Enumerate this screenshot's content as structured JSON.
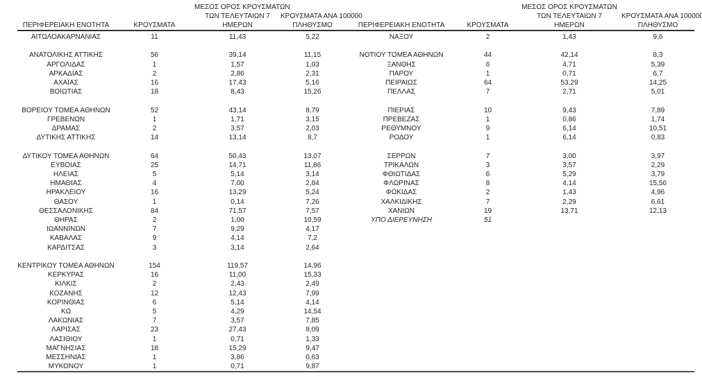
{
  "page": {
    "background": "#ffffff",
    "text_color": "#1f1f1f",
    "header_rule_color": "#2f2f2f",
    "bottom_rule_color": "#4d4d4d"
  },
  "table": {
    "headers": {
      "region": "ΠΕΡΙΦΕΡΕΙΑΚΗ ΕΝΟΤΗΤΑ",
      "cases": "ΚΡΟΥΣΜΑΤΑ",
      "avg7_l1": "ΜΕΣΟΣ ΟΡΟΣ ΚΡΟΥΣΜΑΤΩΝ",
      "avg7_l2": "ΤΩΝ ΤΕΛΕΥΤΑΙΩΝ 7",
      "avg7_l3": "ΗΜΕΡΩΝ",
      "per100k_l1": "ΚΡΟΥΣΜΑΤΑ ΑΝΑ 100000",
      "per100k_l2": "ΠΛΗΘΥΣΜΟ"
    },
    "left_rows": [
      {
        "region": "ΑΙΤΩΛΟΑΚΑΡΝΑΝΙΑΣ",
        "cases": "11",
        "avg7": "11,43",
        "per100k": "5,22"
      },
      null,
      {
        "region": "ΑΝΑΤΟΛΙΚΗΣ ΑΤΤΙΚΗΣ",
        "cases": "56",
        "avg7": "39,14",
        "per100k": "11,15"
      },
      {
        "region": "ΑΡΓΟΛΙΔΑΣ",
        "cases": "1",
        "avg7": "1,57",
        "per100k": "1,03"
      },
      {
        "region": "ΑΡΚΑΔΙΑΣ",
        "cases": "2",
        "avg7": "2,86",
        "per100k": "2,31"
      },
      {
        "region": "ΑΧΑΪΑΣ",
        "cases": "16",
        "avg7": "17,43",
        "per100k": "5,16"
      },
      {
        "region": "ΒΟΙΩΤΙΑΣ",
        "cases": "18",
        "avg7": "8,43",
        "per100k": "15,26"
      },
      null,
      {
        "region": "ΒΟΡΕΙΟΥ ΤΟΜΕΑ ΑΘΗΝΩΝ",
        "cases": "52",
        "avg7": "43,14",
        "per100k": "8,79"
      },
      {
        "region": "ΓΡΕΒΕΝΩΝ",
        "cases": "1",
        "avg7": "1,71",
        "per100k": "3,15"
      },
      {
        "region": "ΔΡΑΜΑΣ",
        "cases": "2",
        "avg7": "3,57",
        "per100k": "2,03"
      },
      {
        "region": "ΔΥΤΙΚΗΣ ΑΤΤΙΚΗΣ",
        "cases": "14",
        "avg7": "13,14",
        "per100k": "8,7"
      },
      null,
      {
        "region": "ΔΥΤΙΚΟΥ ΤΟΜΕΑ ΑΘΗΝΩΝ",
        "cases": "64",
        "avg7": "50,43",
        "per100k": "13,07"
      },
      {
        "region": "ΕΥΒΟΙΑΣ",
        "cases": "25",
        "avg7": "14,71",
        "per100k": "11,86"
      },
      {
        "region": "ΗΛΕΙΑΣ",
        "cases": "5",
        "avg7": "5,14",
        "per100k": "3,14"
      },
      {
        "region": "ΗΜΑΘΙΑΣ",
        "cases": "4",
        "avg7": "7,00",
        "per100k": "2,84"
      },
      {
        "region": "ΗΡΑΚΛΕΙΟΥ",
        "cases": "16",
        "avg7": "13,29",
        "per100k": "5,24"
      },
      {
        "region": "ΘΑΣΟΥ",
        "cases": "1",
        "avg7": "0,14",
        "per100k": "7,26"
      },
      {
        "region": "ΘΕΣΣΑΛΟΝΙΚΗΣ",
        "cases": "84",
        "avg7": "71,57",
        "per100k": "7,57"
      },
      {
        "region": "ΘΗΡΑΣ",
        "cases": "2",
        "avg7": "1,00",
        "per100k": "10,59"
      },
      {
        "region": "ΙΩΑΝΝΙΝΩΝ",
        "cases": "7",
        "avg7": "9,29",
        "per100k": "4,17"
      },
      {
        "region": "ΚΑΒΑΛΑΣ",
        "cases": "9",
        "avg7": "4,14",
        "per100k": "7,2"
      },
      {
        "region": "ΚΑΡΔΙΤΣΑΣ",
        "cases": "3",
        "avg7": "3,14",
        "per100k": "2,64"
      },
      null,
      {
        "region": "ΚΕΝΤΡΙΚΟΥ ΤΟΜΕΑ ΑΘΗΝΩΝ",
        "cases": "154",
        "avg7": "119,57",
        "per100k": "14,96"
      },
      {
        "region": "ΚΕΡΚΥΡΑΣ",
        "cases": "16",
        "avg7": "11,00",
        "per100k": "15,33"
      },
      {
        "region": "ΚΙΛΚΙΣ",
        "cases": "2",
        "avg7": "2,43",
        "per100k": "2,49"
      },
      {
        "region": "ΚΟΖΑΝΗΣ",
        "cases": "12",
        "avg7": "12,43",
        "per100k": "7,99"
      },
      {
        "region": "ΚΟΡΙΝΘΙΑΣ",
        "cases": "6",
        "avg7": "5,14",
        "per100k": "4,14"
      },
      {
        "region": "ΚΩ",
        "cases": "5",
        "avg7": "4,29",
        "per100k": "14,54"
      },
      {
        "region": "ΛΑΚΩΝΙΑΣ",
        "cases": "7",
        "avg7": "3,57",
        "per100k": "7,85"
      },
      {
        "region": "ΛΑΡΙΣΑΣ",
        "cases": "23",
        "avg7": "27,43",
        "per100k": "8,09"
      },
      {
        "region": "ΛΑΣΙΘΙΟΥ",
        "cases": "1",
        "avg7": "0,71",
        "per100k": "1,33"
      },
      {
        "region": "ΜΑΓΝΗΣΙΑΣ",
        "cases": "18",
        "avg7": "15,29",
        "per100k": "9,47"
      },
      {
        "region": "ΜΕΣΣΗΝΙΑΣ",
        "cases": "1",
        "avg7": "3,86",
        "per100k": "0,63"
      },
      {
        "region": "ΜΥΚΟΝΟΥ",
        "cases": "1",
        "avg7": "0,71",
        "per100k": "9,87"
      }
    ],
    "right_rows": [
      {
        "region": "ΝΑΞΟΥ",
        "cases": "2",
        "avg7": "1,43",
        "per100k": "9,6"
      },
      null,
      {
        "region": "ΝΟΤΙΟΥ ΤΟΜΕΑ ΑΘΗΝΩΝ",
        "cases": "44",
        "avg7": "42,14",
        "per100k": "8,3"
      },
      {
        "region": "ΞΑΝΘΗΣ",
        "cases": "6",
        "avg7": "4,71",
        "per100k": "5,39"
      },
      {
        "region": "ΠΑΡΟΥ",
        "cases": "1",
        "avg7": "0,71",
        "per100k": "6,7"
      },
      {
        "region": "ΠΕΙΡΑΙΩΣ",
        "cases": "64",
        "avg7": "53,29",
        "per100k": "14,25"
      },
      {
        "region": "ΠΕΛΛΑΣ",
        "cases": "7",
        "avg7": "2,71",
        "per100k": "5,01"
      },
      null,
      {
        "region": "ΠΙΕΡΙΑΣ",
        "cases": "10",
        "avg7": "9,43",
        "per100k": "7,89"
      },
      {
        "region": "ΠΡΕΒΕΖΑΣ",
        "cases": "1",
        "avg7": "0,86",
        "per100k": "1,74"
      },
      {
        "region": "ΡΕΘΥΜΝΟΥ",
        "cases": "9",
        "avg7": "6,14",
        "per100k": "10,51"
      },
      {
        "region": "ΡΟΔΟΥ",
        "cases": "1",
        "avg7": "6,14",
        "per100k": "0,83"
      },
      null,
      {
        "region": "ΣΕΡΡΩΝ",
        "cases": "7",
        "avg7": "3,00",
        "per100k": "3,97"
      },
      {
        "region": "ΤΡΙΚΑΛΩΝ",
        "cases": "3",
        "avg7": "3,57",
        "per100k": "2,29"
      },
      {
        "region": "ΦΘΙΩΤΙΔΑΣ",
        "cases": "6",
        "avg7": "5,29",
        "per100k": "3,79"
      },
      {
        "region": "ΦΛΩΡΙΝΑΣ",
        "cases": "8",
        "avg7": "4,14",
        "per100k": "15,56"
      },
      {
        "region": "ΦΩΚΙΔΑΣ",
        "cases": "2",
        "avg7": "1,43",
        "per100k": "4,96"
      },
      {
        "region": "ΧΑΛΚΙΔΙΚΗΣ",
        "cases": "7",
        "avg7": "2,29",
        "per100k": "6,61"
      },
      {
        "region": "ΧΑΝΙΩΝ",
        "cases": "19",
        "avg7": "13,71",
        "per100k": "12,13"
      },
      {
        "region": "ΥΠΟ ΔΙΕΡΕΥΝΗΣΗ",
        "cases": "51",
        "avg7": "",
        "per100k": "",
        "italic": true
      }
    ]
  }
}
